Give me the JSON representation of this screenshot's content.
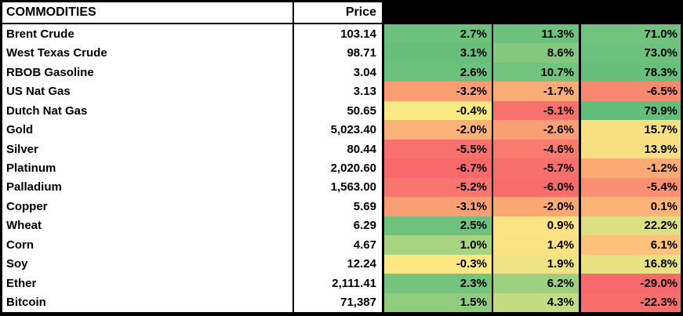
{
  "header": {
    "commodities_label": "COMMODITIES",
    "price_label": "Price",
    "change_header_bg": "#000000"
  },
  "colors": {
    "border": "#000000",
    "cell_text": "#000000",
    "table_bg": "#ffffff",
    "scale_green": "#63BE7B",
    "scale_yellow": "#FFE984",
    "scale_red": "#F8696B"
  },
  "rows": [
    {
      "name": "Brent Crude",
      "price": "103.14",
      "changes": [
        {
          "value": "2.7%",
          "bg": "#6CC17D"
        },
        {
          "value": "11.3%",
          "bg": "#6CC17D"
        },
        {
          "value": "71.0%",
          "bg": "#70C27D"
        }
      ]
    },
    {
      "name": "West Texas Crude",
      "price": "98.71",
      "changes": [
        {
          "value": "3.1%",
          "bg": "#67BF7B"
        },
        {
          "value": "8.6%",
          "bg": "#85C97E"
        },
        {
          "value": "73.0%",
          "bg": "#6CC17C"
        }
      ]
    },
    {
      "name": "RBOB Gasoline",
      "price": "3.04",
      "changes": [
        {
          "value": "2.6%",
          "bg": "#6CC17D"
        },
        {
          "value": "10.7%",
          "bg": "#72C37D"
        },
        {
          "value": "78.3%",
          "bg": "#66BF7B"
        }
      ]
    },
    {
      "name": "US Nat Gas",
      "price": "3.13",
      "changes": [
        {
          "value": "-3.2%",
          "bg": "#FA9D73"
        },
        {
          "value": "-1.7%",
          "bg": "#FBAC76"
        },
        {
          "value": "-6.5%",
          "bg": "#F98870"
        }
      ]
    },
    {
      "name": "Dutch Nat Gas",
      "price": "50.65",
      "changes": [
        {
          "value": "-0.4%",
          "bg": "#FBE983"
        },
        {
          "value": "-5.1%",
          "bg": "#F8716D"
        },
        {
          "value": "79.9%",
          "bg": "#63BE7B"
        }
      ]
    },
    {
      "name": "Gold",
      "price": "5,023.40",
      "changes": [
        {
          "value": "-2.0%",
          "bg": "#FBB278"
        },
        {
          "value": "-2.6%",
          "bg": "#FA9E73"
        },
        {
          "value": "15.7%",
          "bg": "#F8E081"
        }
      ]
    },
    {
      "name": "Silver",
      "price": "80.44",
      "changes": [
        {
          "value": "-5.5%",
          "bg": "#F8716D"
        },
        {
          "value": "-4.6%",
          "bg": "#F97A6F"
        },
        {
          "value": "13.9%",
          "bg": "#F6E081"
        }
      ]
    },
    {
      "name": "Platinum",
      "price": "2,020.60",
      "changes": [
        {
          "value": "-6.7%",
          "bg": "#F8696B"
        },
        {
          "value": "-5.7%",
          "bg": "#F8706D"
        },
        {
          "value": "-1.2%",
          "bg": "#FBAA76"
        }
      ]
    },
    {
      "name": "Palladium",
      "price": "1,563.00",
      "changes": [
        {
          "value": "-5.2%",
          "bg": "#F8766E"
        },
        {
          "value": "-6.0%",
          "bg": "#F86D6C"
        },
        {
          "value": "-5.4%",
          "bg": "#FA8F71"
        }
      ]
    },
    {
      "name": "Copper",
      "price": "5.69",
      "changes": [
        {
          "value": "-3.1%",
          "bg": "#FA9F73"
        },
        {
          "value": "-2.0%",
          "bg": "#FBA875"
        },
        {
          "value": "0.1%",
          "bg": "#FBB377"
        }
      ]
    },
    {
      "name": "Wheat",
      "price": "6.29",
      "changes": [
        {
          "value": "2.5%",
          "bg": "#6EC27D"
        },
        {
          "value": "0.9%",
          "bg": "#FBE383"
        },
        {
          "value": "22.2%",
          "bg": "#DCE082"
        }
      ]
    },
    {
      "name": "Corn",
      "price": "4.67",
      "changes": [
        {
          "value": "1.0%",
          "bg": "#A8D380"
        },
        {
          "value": "1.4%",
          "bg": "#F9E282"
        },
        {
          "value": "6.1%",
          "bg": "#FCC27B"
        }
      ]
    },
    {
      "name": "Soy",
      "price": "12.24",
      "changes": [
        {
          "value": "-0.3%",
          "bg": "#FCE883"
        },
        {
          "value": "1.9%",
          "bg": "#EEE384"
        },
        {
          "value": "16.8%",
          "bg": "#E9E283"
        }
      ]
    },
    {
      "name": "Ether",
      "price": "2,111.41",
      "changes": [
        {
          "value": "2.3%",
          "bg": "#75C47D"
        },
        {
          "value": "6.2%",
          "bg": "#9DD17F"
        },
        {
          "value": "-29.0%",
          "bg": "#F8696B"
        }
      ]
    },
    {
      "name": "Bitcoin",
      "price": "71,387",
      "changes": [
        {
          "value": "1.5%",
          "bg": "#90CC7E"
        },
        {
          "value": "4.3%",
          "bg": "#C4DC81"
        },
        {
          "value": "-22.3%",
          "bg": "#F86E6C"
        }
      ]
    }
  ]
}
